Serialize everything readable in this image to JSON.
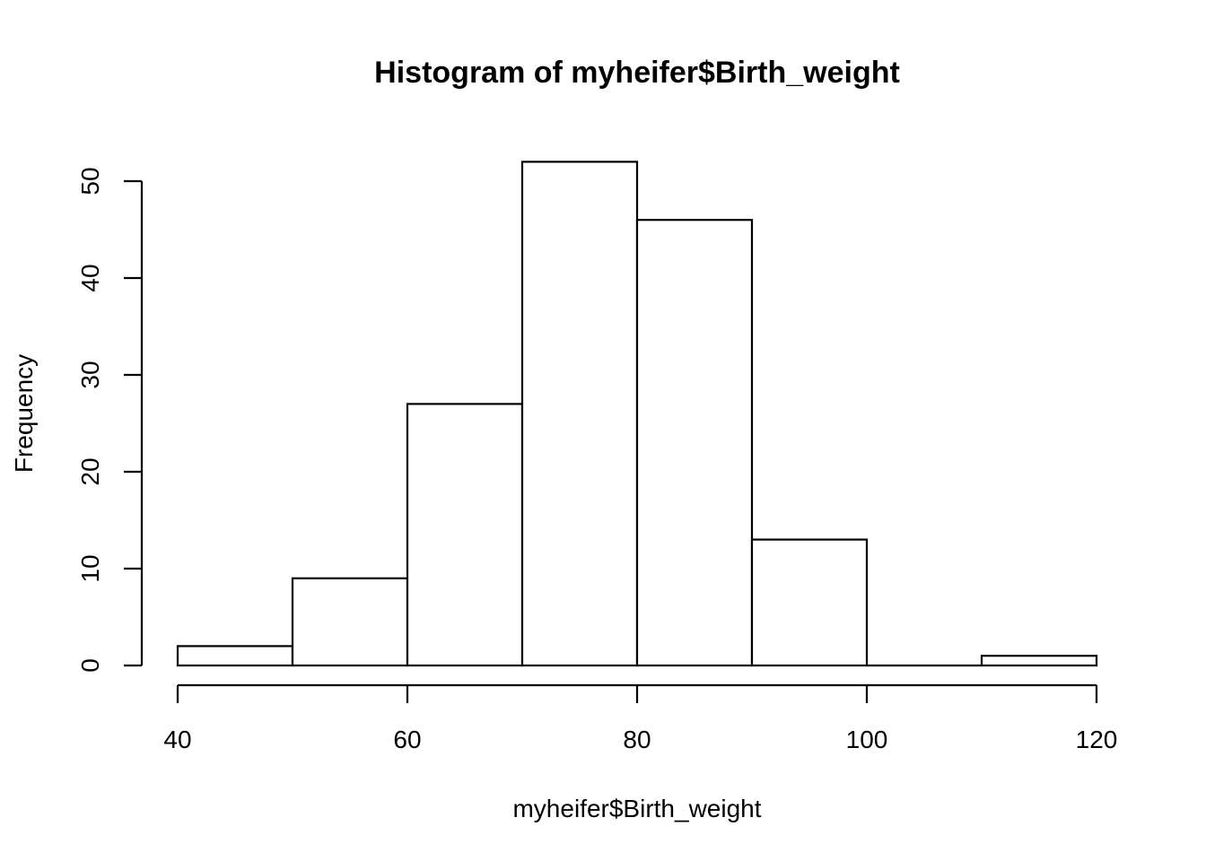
{
  "chart_data": {
    "type": "bar",
    "title": "Histogram of myheifer$Birth_weight",
    "xlabel": "myheifer$Birth_weight",
    "ylabel": "Frequency",
    "bins": [
      {
        "from": 40,
        "to": 50,
        "value": 2
      },
      {
        "from": 50,
        "to": 60,
        "value": 9
      },
      {
        "from": 60,
        "to": 70,
        "value": 27
      },
      {
        "from": 70,
        "to": 80,
        "value": 52
      },
      {
        "from": 80,
        "to": 90,
        "value": 46
      },
      {
        "from": 90,
        "to": 100,
        "value": 13
      },
      {
        "from": 100,
        "to": 110,
        "value": 0
      },
      {
        "from": 110,
        "to": 120,
        "value": 1
      }
    ],
    "xlim": [
      40,
      120
    ],
    "ylim": [
      0,
      52
    ],
    "x_ticks": [
      40,
      60,
      80,
      100,
      120
    ],
    "y_ticks": [
      0,
      10,
      20,
      30,
      40,
      50
    ],
    "grid": false
  }
}
